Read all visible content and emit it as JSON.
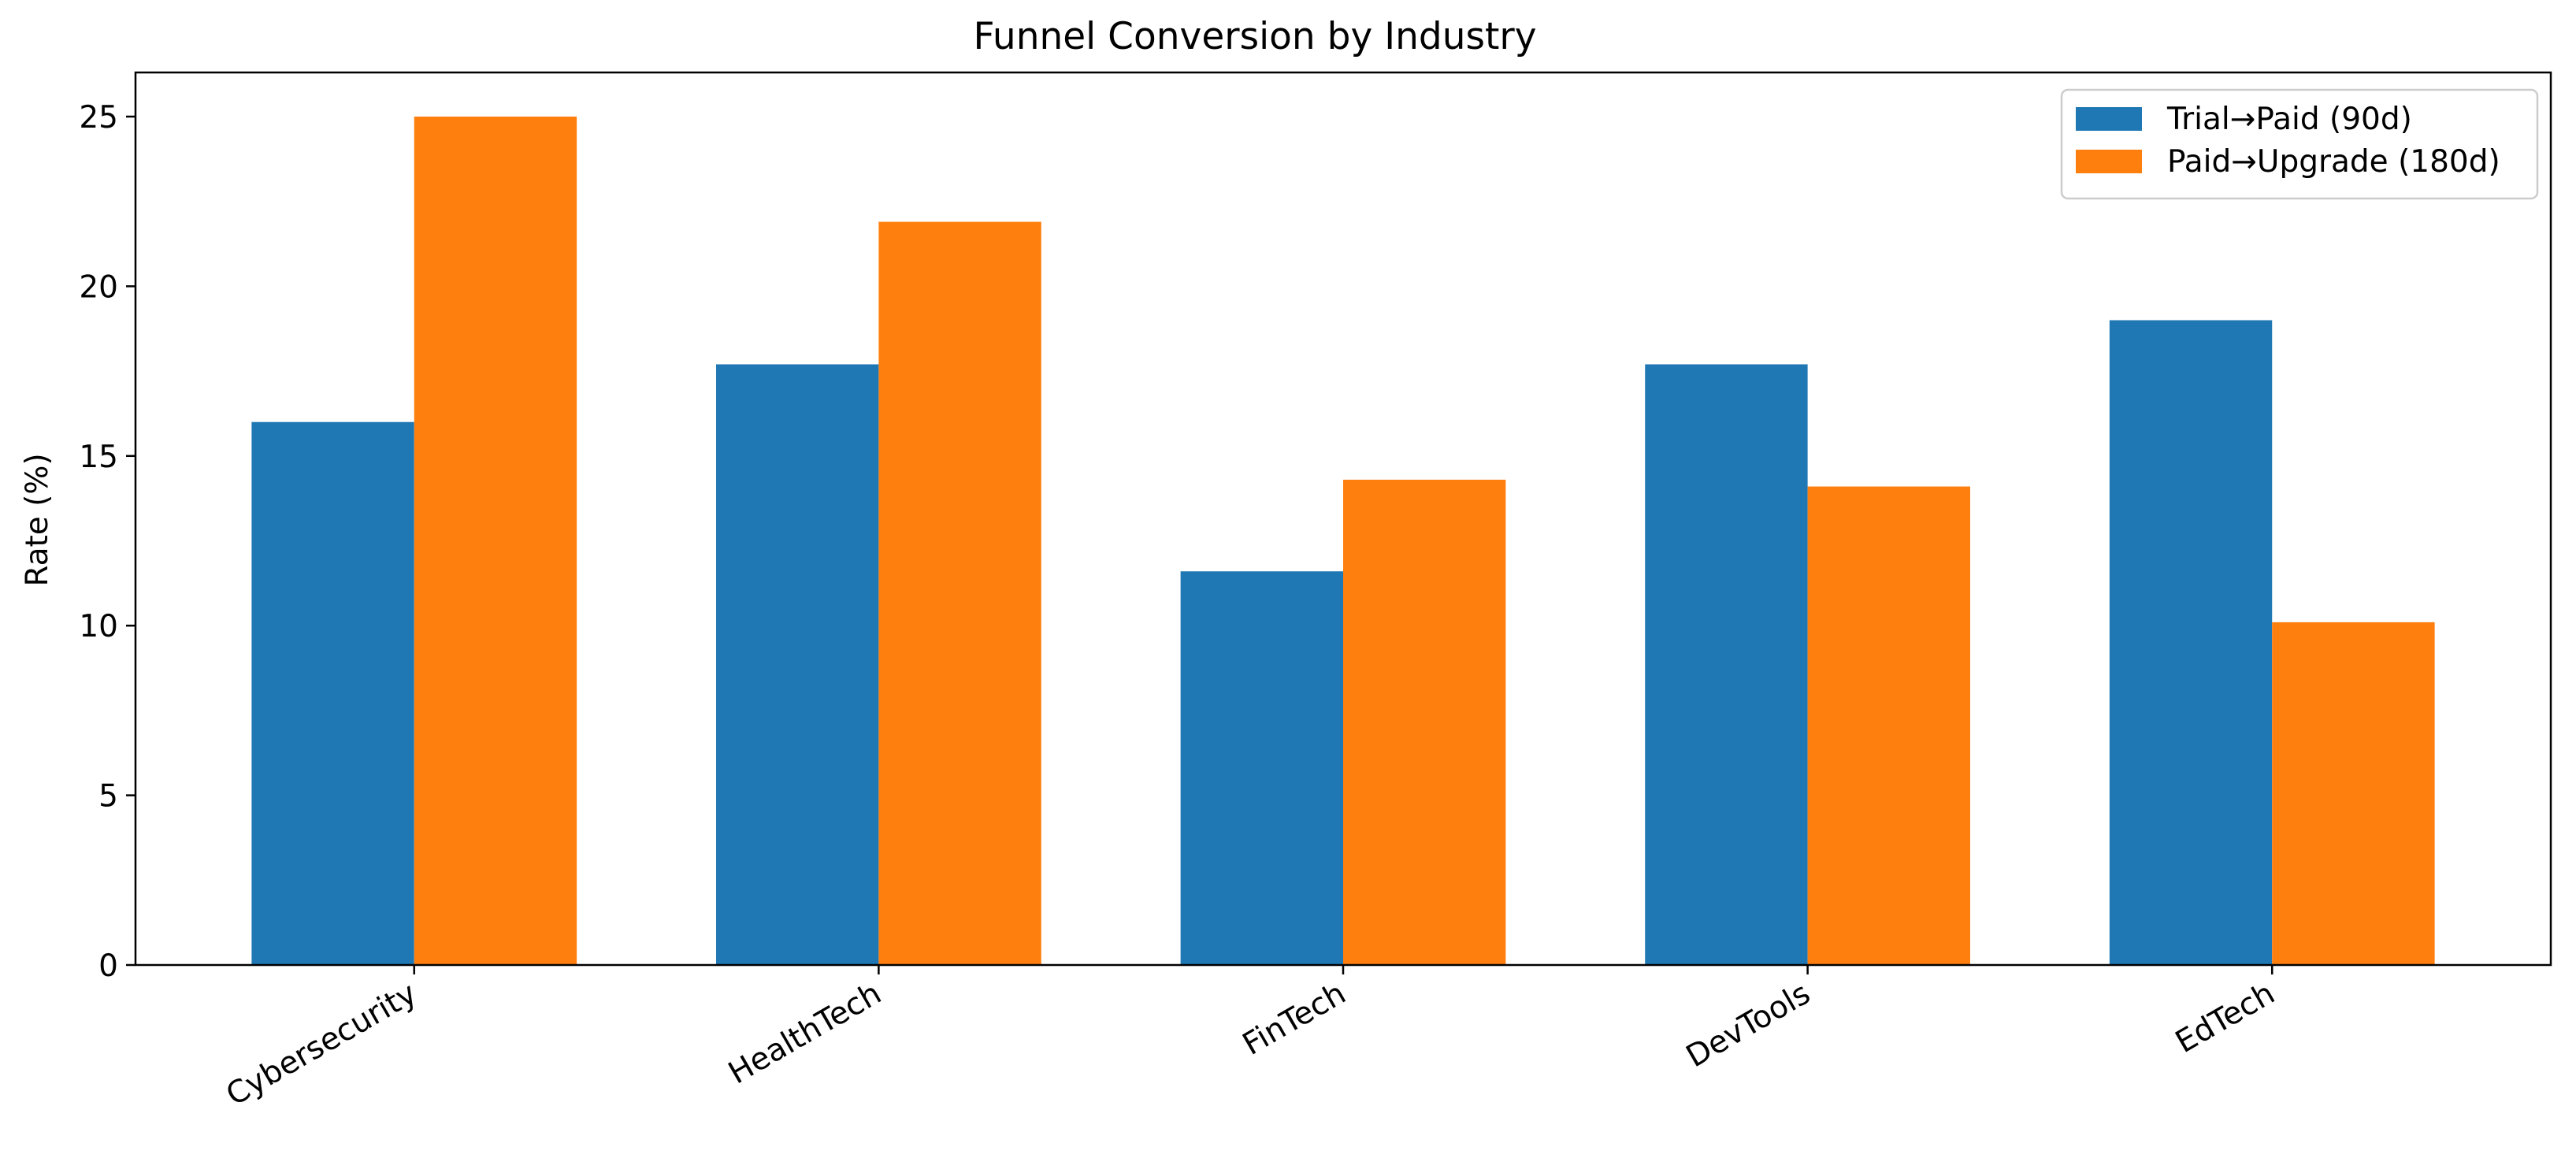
{
  "chart_data": {
    "type": "bar",
    "title": "Funnel Conversion by Industry",
    "xlabel": "",
    "ylabel": "Rate (%)",
    "categories": [
      "Cybersecurity",
      "HealthTech",
      "FinTech",
      "DevTools",
      "EdTech"
    ],
    "series": [
      {
        "name": "Trial→Paid (90d)",
        "color": "#1f77b4",
        "values": [
          16.0,
          17.7,
          11.6,
          17.7,
          19.0
        ]
      },
      {
        "name": "Paid→Upgrade (180d)",
        "color": "#ff7f0e",
        "values": [
          25.0,
          21.9,
          14.3,
          14.1,
          10.1
        ]
      }
    ],
    "ylim": [
      0,
      26.3
    ],
    "yticks": [
      0,
      5,
      10,
      15,
      20,
      25
    ],
    "grid": false,
    "legend_position": "top-right"
  }
}
